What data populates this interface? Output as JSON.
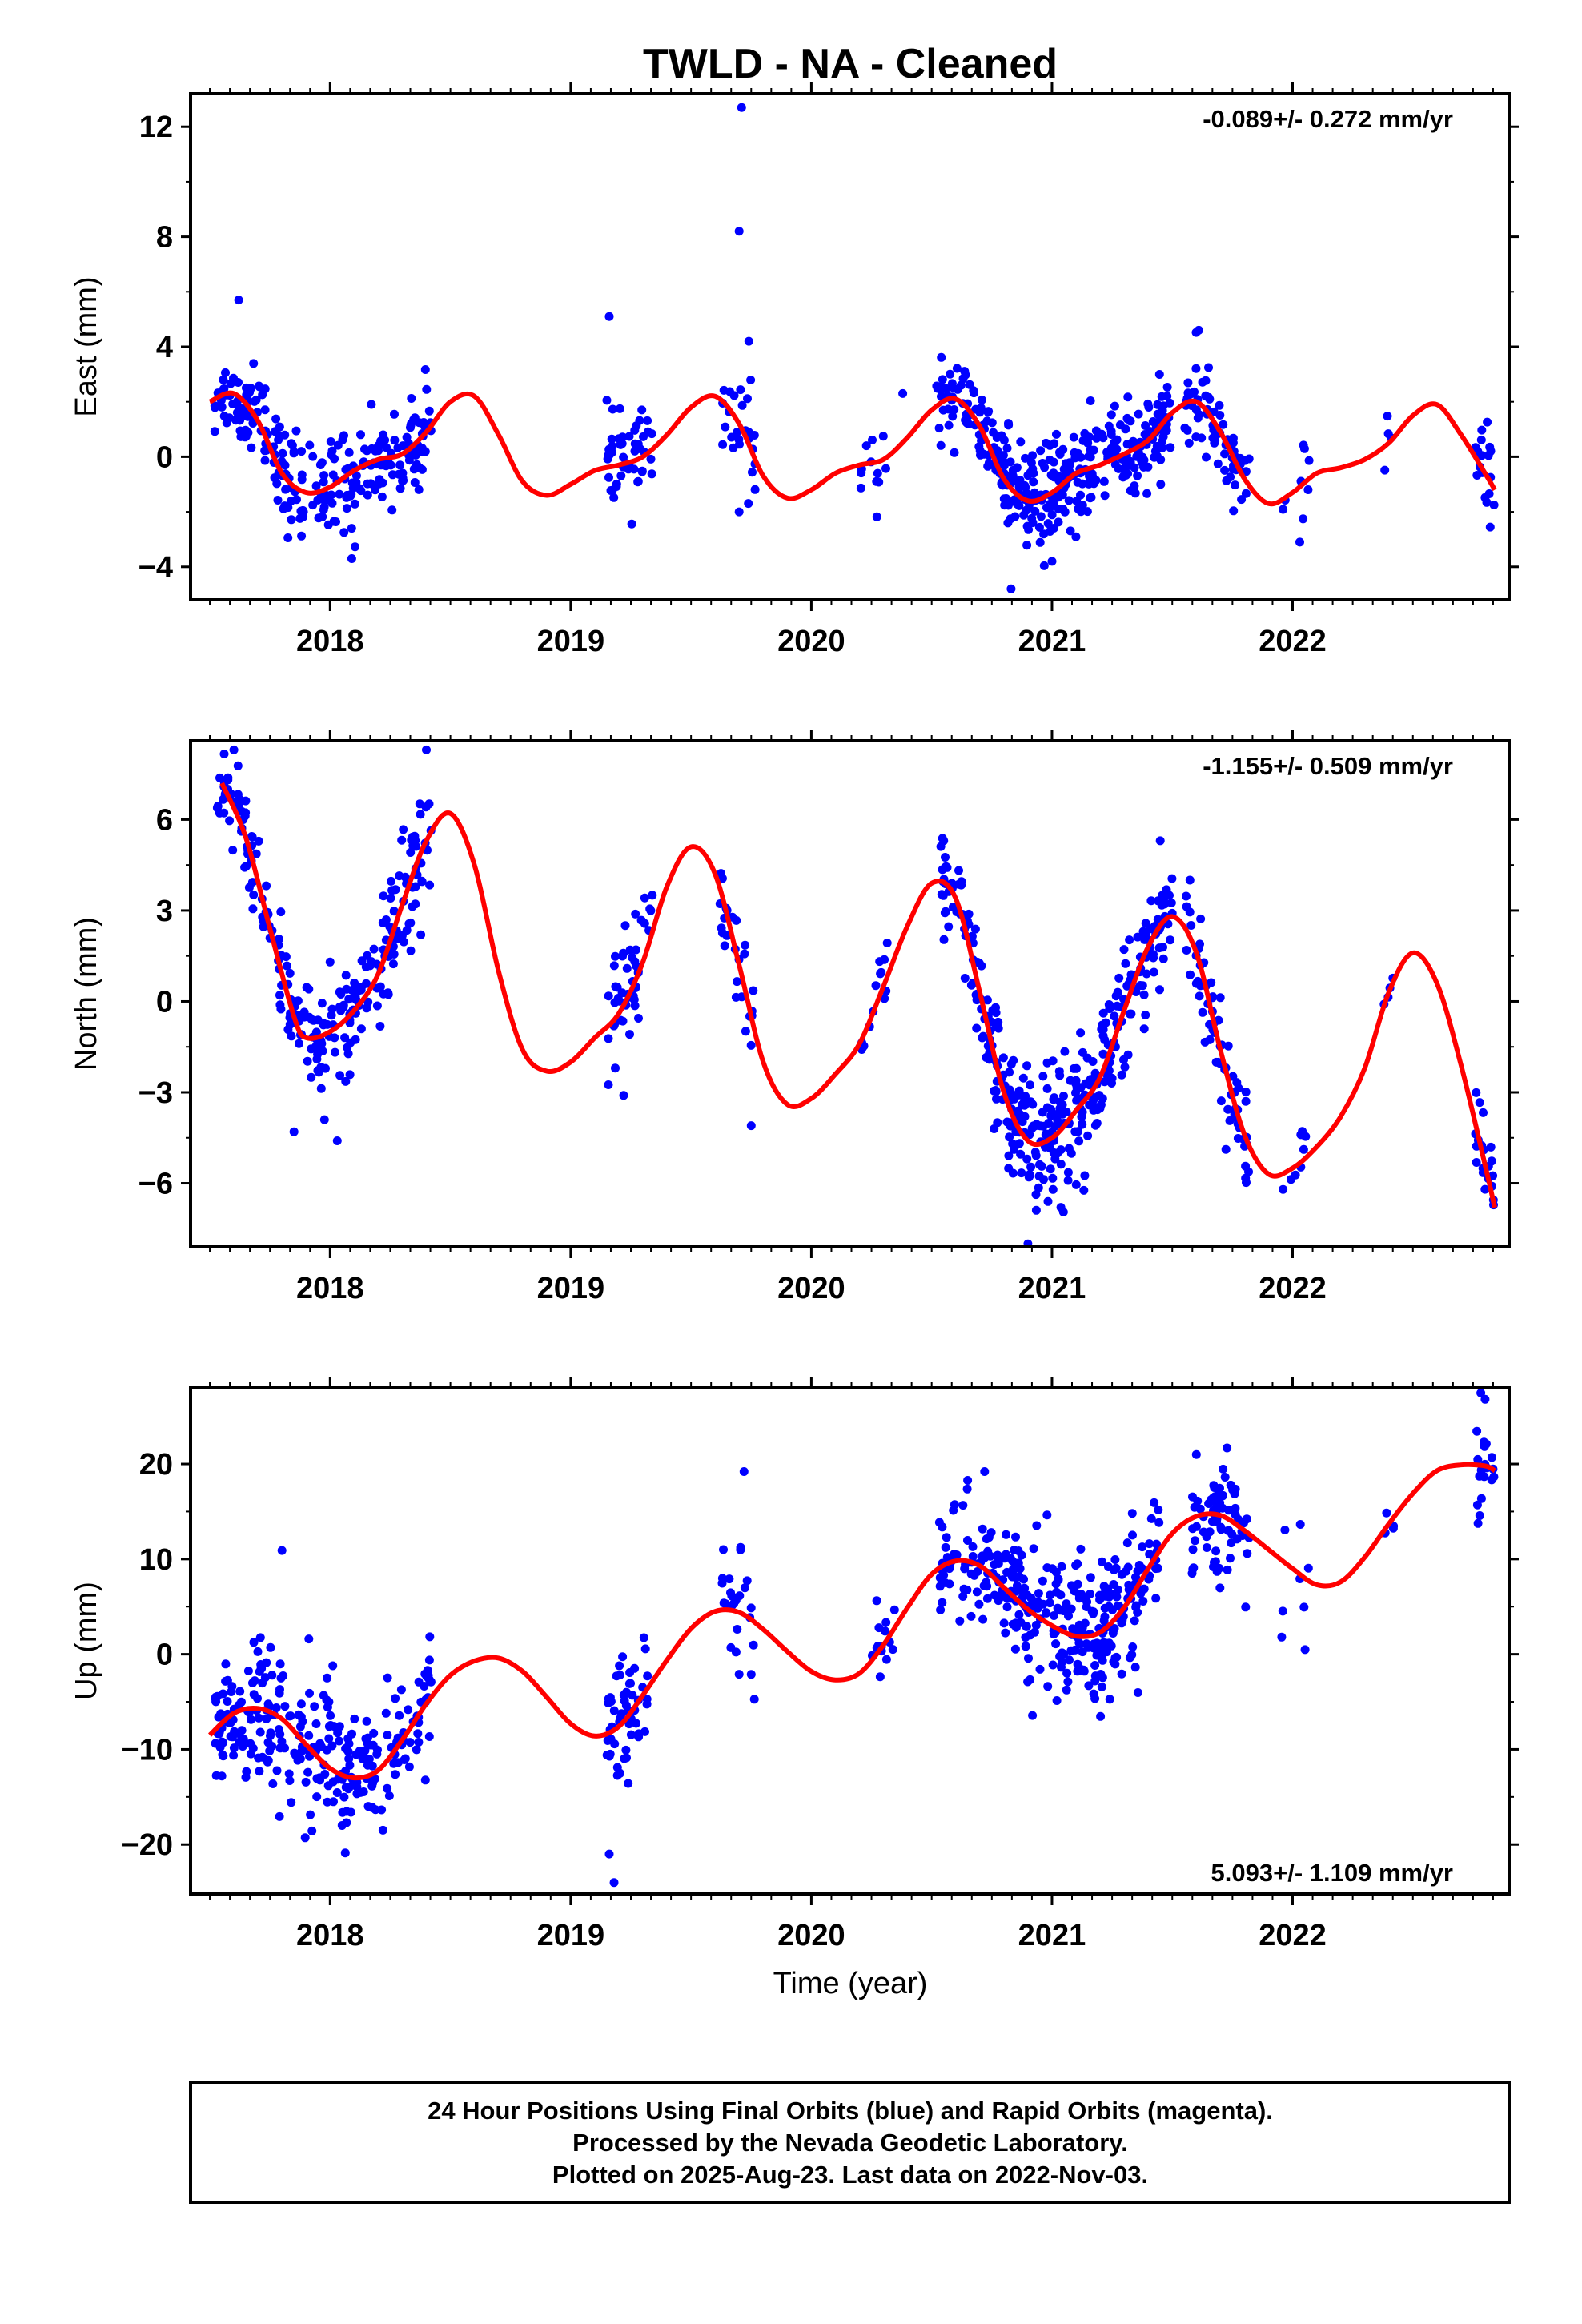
{
  "colors": {
    "points": "#0000ff",
    "fit": "#ff0000",
    "frame": "#000000"
  },
  "chart_data": [
    {
      "type": "scatter",
      "panel": "east",
      "title": "TWLD  - NA - Cleaned",
      "xlabel": "",
      "ylabel": "East (mm)",
      "xlim": [
        2017.42,
        2022.9
      ],
      "ylim": [
        -5.2,
        13.2
      ],
      "yticks": [
        -4,
        0,
        4,
        8,
        12
      ],
      "xticks": [
        2018,
        2019,
        2020,
        2021,
        2022
      ],
      "rate": "-0.089+/- 0.272 mm/yr",
      "rate_position": "top-right",
      "grid": false,
      "fit": {
        "x": [
          2017.5,
          2017.6,
          2017.7,
          2017.8,
          2017.9,
          2018.0,
          2018.1,
          2018.2,
          2018.3,
          2018.4,
          2018.5,
          2018.6,
          2018.7,
          2018.8,
          2018.9,
          2019.0,
          2019.1,
          2019.2,
          2019.3,
          2019.4,
          2019.5,
          2019.6,
          2019.7,
          2019.8,
          2019.9,
          2020.0,
          2020.1,
          2020.2,
          2020.3,
          2020.4,
          2020.5,
          2020.6,
          2020.7,
          2020.8,
          2020.9,
          2021.0,
          2021.1,
          2021.2,
          2021.3,
          2021.4,
          2021.5,
          2021.6,
          2021.7,
          2021.8,
          2021.9,
          2022.0,
          2022.1,
          2022.2,
          2022.3,
          2022.4,
          2022.5,
          2022.6,
          2022.7,
          2022.8,
          2022.84
        ],
        "y": [
          2.0,
          2.3,
          1.3,
          -0.6,
          -1.3,
          -1.1,
          -0.5,
          -0.1,
          0.1,
          0.9,
          2.0,
          2.2,
          0.8,
          -0.9,
          -1.4,
          -1.0,
          -0.5,
          -0.3,
          0.0,
          0.8,
          1.8,
          2.2,
          1.2,
          -0.7,
          -1.5,
          -1.2,
          -0.6,
          -0.3,
          -0.1,
          0.7,
          1.7,
          2.1,
          1.1,
          -0.8,
          -1.6,
          -1.3,
          -0.6,
          -0.3,
          0.1,
          0.6,
          1.6,
          2.0,
          0.9,
          -0.8,
          -1.7,
          -1.3,
          -0.6,
          -0.4,
          -0.1,
          0.5,
          1.5,
          1.9,
          0.8,
          -0.6,
          -1.2
        ]
      },
      "clusters": [
        {
          "t0": 2017.52,
          "t1": 2017.68,
          "n": 45,
          "sd": 0.7,
          "lo": 0,
          "hi": 0
        },
        {
          "t0": 2017.68,
          "t1": 2018.1,
          "n": 110,
          "sd": 0.9,
          "lo": 0,
          "hi": 0
        },
        {
          "t0": 2018.1,
          "t1": 2018.42,
          "n": 90,
          "sd": 0.8,
          "lo": 0,
          "hi": 0
        },
        {
          "t0": 2019.15,
          "t1": 2019.35,
          "n": 50,
          "sd": 0.9,
          "lo": 0,
          "hi": 0
        },
        {
          "t0": 2019.62,
          "t1": 2019.77,
          "n": 25,
          "sd": 0.9,
          "lo": 0,
          "hi": 0
        },
        {
          "t0": 2020.2,
          "t1": 2020.32,
          "n": 12,
          "sd": 0.7,
          "lo": 0,
          "hi": 0
        },
        {
          "t0": 2020.52,
          "t1": 2020.75,
          "n": 60,
          "sd": 0.8,
          "lo": 0,
          "hi": 0
        },
        {
          "t0": 2020.75,
          "t1": 2021.12,
          "n": 160,
          "sd": 0.9,
          "lo": 0,
          "hi": 0
        },
        {
          "t0": 2021.12,
          "t1": 2021.5,
          "n": 130,
          "sd": 0.8,
          "lo": 0,
          "hi": 0
        },
        {
          "t0": 2021.55,
          "t1": 2021.82,
          "n": 70,
          "sd": 0.8,
          "lo": 0,
          "hi": 0
        },
        {
          "t0": 2021.95,
          "t1": 2022.07,
          "n": 8,
          "sd": 0.6,
          "lo": 0,
          "hi": 0
        },
        {
          "t0": 2022.38,
          "t1": 2022.42,
          "n": 4,
          "sd": 0.5,
          "lo": 0,
          "hi": 0
        },
        {
          "t0": 2022.76,
          "t1": 2022.84,
          "n": 20,
          "sd": 0.9,
          "lo": 0,
          "hi": 0
        }
      ],
      "outliers": [
        [
          2017.62,
          5.7
        ],
        [
          2019.71,
          12.7
        ],
        [
          2019.7,
          8.2
        ],
        [
          2019.74,
          4.2
        ],
        [
          2019.16,
          5.1
        ],
        [
          2020.83,
          -4.8
        ],
        [
          2021.0,
          -3.8
        ],
        [
          2018.09,
          -3.7
        ],
        [
          2021.61,
          4.6
        ],
        [
          2020.38,
          2.3
        ],
        [
          2019.7,
          -2.0
        ],
        [
          2022.03,
          -3.1
        ]
      ]
    },
    {
      "type": "scatter",
      "panel": "north",
      "title": "",
      "xlabel": "",
      "ylabel": "North (mm)",
      "xlim": [
        2017.42,
        2022.9
      ],
      "ylim": [
        -8.1,
        8.6
      ],
      "yticks": [
        -6,
        -3,
        0,
        3,
        6
      ],
      "xticks": [
        2018,
        2019,
        2020,
        2021,
        2022
      ],
      "rate": "-1.155+/- 0.509 mm/yr",
      "rate_position": "top-right",
      "grid": false,
      "fit": {
        "x": [
          2017.55,
          2017.65,
          2017.75,
          2017.85,
          2017.9,
          2018.0,
          2018.1,
          2018.2,
          2018.3,
          2018.4,
          2018.5,
          2018.6,
          2018.7,
          2018.8,
          2018.9,
          2019.0,
          2019.1,
          2019.2,
          2019.3,
          2019.4,
          2019.5,
          2019.6,
          2019.7,
          2019.8,
          2019.9,
          2020.0,
          2020.1,
          2020.2,
          2020.3,
          2020.4,
          2020.5,
          2020.6,
          2020.7,
          2020.8,
          2020.9,
          2021.0,
          2021.1,
          2021.2,
          2021.3,
          2021.4,
          2021.5,
          2021.6,
          2021.7,
          2021.8,
          2021.9,
          2022.0,
          2022.1,
          2022.2,
          2022.3,
          2022.4,
          2022.5,
          2022.6,
          2022.7,
          2022.8,
          2022.84
        ],
        "y": [
          7.2,
          5.4,
          2.4,
          -0.5,
          -1.2,
          -1.0,
          -0.3,
          0.9,
          3.2,
          5.3,
          6.2,
          4.5,
          1.0,
          -1.6,
          -2.3,
          -2.0,
          -1.2,
          -0.4,
          1.3,
          3.8,
          5.1,
          4.2,
          1.2,
          -2.0,
          -3.4,
          -3.2,
          -2.4,
          -1.4,
          0.5,
          2.5,
          3.9,
          3.4,
          0.3,
          -3.0,
          -4.6,
          -4.5,
          -3.6,
          -2.5,
          -0.3,
          1.8,
          2.8,
          1.6,
          -1.6,
          -4.4,
          -5.7,
          -5.5,
          -4.8,
          -3.8,
          -2.2,
          0.3,
          1.6,
          0.6,
          -2.1,
          -5.4,
          -6.8
        ]
      },
      "clusters": [
        {
          "t0": 2017.52,
          "t1": 2017.68,
          "n": 45,
          "sd": 0.7,
          "lo": 0,
          "hi": 0
        },
        {
          "t0": 2017.68,
          "t1": 2018.1,
          "n": 110,
          "sd": 1.0,
          "lo": 0,
          "hi": 0
        },
        {
          "t0": 2018.1,
          "t1": 2018.42,
          "n": 90,
          "sd": 1.0,
          "lo": 0,
          "hi": 0
        },
        {
          "t0": 2019.15,
          "t1": 2019.35,
          "n": 50,
          "sd": 1.1,
          "lo": 0,
          "hi": 0
        },
        {
          "t0": 2019.62,
          "t1": 2019.77,
          "n": 25,
          "sd": 0.9,
          "lo": 0,
          "hi": 0
        },
        {
          "t0": 2020.2,
          "t1": 2020.32,
          "n": 14,
          "sd": 0.8,
          "lo": 0,
          "hi": 0
        },
        {
          "t0": 2020.52,
          "t1": 2020.75,
          "n": 60,
          "sd": 0.8,
          "lo": 0,
          "hi": 0
        },
        {
          "t0": 2020.75,
          "t1": 2021.12,
          "n": 160,
          "sd": 1.1,
          "lo": 0,
          "hi": 0
        },
        {
          "t0": 2021.12,
          "t1": 2021.5,
          "n": 130,
          "sd": 0.9,
          "lo": 0,
          "hi": 0
        },
        {
          "t0": 2021.55,
          "t1": 2021.82,
          "n": 70,
          "sd": 0.9,
          "lo": 0,
          "hi": 0
        },
        {
          "t0": 2021.95,
          "t1": 2022.07,
          "n": 8,
          "sd": 0.5,
          "lo": 0,
          "hi": 0
        },
        {
          "t0": 2022.38,
          "t1": 2022.42,
          "n": 4,
          "sd": 0.4,
          "lo": 0,
          "hi": 0
        },
        {
          "t0": 2022.76,
          "t1": 2022.84,
          "n": 20,
          "sd": 0.9,
          "lo": 0,
          "hi": 0
        }
      ],
      "outliers": [
        [
          2018.03,
          -4.6
        ],
        [
          2017.85,
          -4.3
        ],
        [
          2018.4,
          8.3
        ],
        [
          2020.9,
          -8.0
        ],
        [
          2019.75,
          -4.1
        ],
        [
          2019.22,
          -3.1
        ],
        [
          2020.55,
          5.3
        ],
        [
          2021.45,
          5.3
        ],
        [
          2018.0,
          1.3
        ],
        [
          2017.6,
          8.3
        ]
      ]
    },
    {
      "type": "scatter",
      "panel": "up",
      "title": "",
      "xlabel": "Time (year)",
      "ylabel": "Up (mm)",
      "xlim": [
        2017.42,
        2022.9
      ],
      "ylim": [
        -25.2,
        28.0
      ],
      "yticks": [
        -20,
        -10,
        0,
        10,
        20
      ],
      "xticks": [
        2018,
        2019,
        2020,
        2021,
        2022
      ],
      "rate": "5.093+/- 1.109 mm/yr",
      "rate_position": "bottom-right",
      "grid": false,
      "fit": {
        "x": [
          2017.5,
          2017.6,
          2017.7,
          2017.8,
          2017.9,
          2018.0,
          2018.1,
          2018.2,
          2018.3,
          2018.4,
          2018.5,
          2018.6,
          2018.7,
          2018.8,
          2018.9,
          2019.0,
          2019.1,
          2019.2,
          2019.3,
          2019.4,
          2019.5,
          2019.6,
          2019.7,
          2019.8,
          2019.9,
          2020.0,
          2020.1,
          2020.2,
          2020.3,
          2020.4,
          2020.5,
          2020.6,
          2020.7,
          2020.8,
          2020.9,
          2021.0,
          2021.1,
          2021.2,
          2021.3,
          2021.4,
          2021.5,
          2021.6,
          2021.7,
          2021.8,
          2021.9,
          2022.0,
          2022.1,
          2022.2,
          2022.3,
          2022.4,
          2022.5,
          2022.6,
          2022.7,
          2022.8,
          2022.84
        ],
        "y": [
          -8.5,
          -6.2,
          -5.7,
          -6.8,
          -9.5,
          -12.0,
          -13.0,
          -12.2,
          -9.0,
          -5.2,
          -2.2,
          -0.7,
          -0.4,
          -1.8,
          -4.5,
          -7.3,
          -8.6,
          -7.6,
          -4.3,
          -0.6,
          2.7,
          4.5,
          4.4,
          2.6,
          0.3,
          -1.8,
          -2.7,
          -2.0,
          1.0,
          4.9,
          8.4,
          9.8,
          9.3,
          7.0,
          4.7,
          3.0,
          1.9,
          2.3,
          4.9,
          9.0,
          12.7,
          14.5,
          14.6,
          13.0,
          11.0,
          9.0,
          7.3,
          7.6,
          10.2,
          13.7,
          16.9,
          19.3,
          19.9,
          19.8,
          19.3
        ]
      },
      "clusters": [
        {
          "t0": 2017.52,
          "t1": 2017.7,
          "n": 60,
          "sd": 3.0,
          "lo": 0,
          "hi": 0
        },
        {
          "t0": 2017.7,
          "t1": 2018.05,
          "n": 110,
          "sd": 4.2,
          "lo": 0,
          "hi": 0
        },
        {
          "t0": 2018.05,
          "t1": 2018.42,
          "n": 100,
          "sd": 3.4,
          "lo": 0,
          "hi": 0
        },
        {
          "t0": 2019.15,
          "t1": 2019.32,
          "n": 55,
          "sd": 3.5,
          "lo": 0,
          "hi": 0
        },
        {
          "t0": 2019.62,
          "t1": 2019.77,
          "n": 25,
          "sd": 4.5,
          "lo": 0,
          "hi": 0
        },
        {
          "t0": 2020.22,
          "t1": 2020.35,
          "n": 14,
          "sd": 2.6,
          "lo": 0,
          "hi": 0
        },
        {
          "t0": 2020.53,
          "t1": 2020.75,
          "n": 60,
          "sd": 3.6,
          "lo": 0,
          "hi": 0
        },
        {
          "t0": 2020.75,
          "t1": 2021.15,
          "n": 160,
          "sd": 3.6,
          "lo": 0,
          "hi": 0
        },
        {
          "t0": 2021.15,
          "t1": 2021.45,
          "n": 120,
          "sd": 3.4,
          "lo": 0,
          "hi": 0
        },
        {
          "t0": 2021.58,
          "t1": 2021.82,
          "n": 70,
          "sd": 3.0,
          "lo": 0,
          "hi": 0
        },
        {
          "t0": 2021.95,
          "t1": 2022.07,
          "n": 8,
          "sd": 4.5,
          "lo": 0,
          "hi": 0
        },
        {
          "t0": 2022.38,
          "t1": 2022.42,
          "n": 4,
          "sd": 1.5,
          "lo": 0,
          "hi": 0
        },
        {
          "t0": 2022.76,
          "t1": 2022.84,
          "n": 20,
          "sd": 3.2,
          "lo": 0,
          "hi": 0
        }
      ],
      "outliers": [
        [
          2019.18,
          -24.0
        ],
        [
          2019.16,
          -21.0
        ],
        [
          2019.72,
          19.2
        ],
        [
          2022.8,
          26.8
        ],
        [
          2018.05,
          -18.0
        ],
        [
          2018.22,
          -18.5
        ],
        [
          2020.72,
          19.2
        ],
        [
          2021.6,
          21.0
        ],
        [
          2017.55,
          -12.8
        ],
        [
          2017.8,
          10.9
        ]
      ]
    }
  ],
  "caption": {
    "line1": "24 Hour Positions Using Final Orbits (blue) and Rapid Orbits (magenta).",
    "line2": "Processed by the Nevada Geodetic Laboratory.",
    "line3": "Plotted on 2025-Aug-23. Last data on 2022-Nov-03."
  }
}
